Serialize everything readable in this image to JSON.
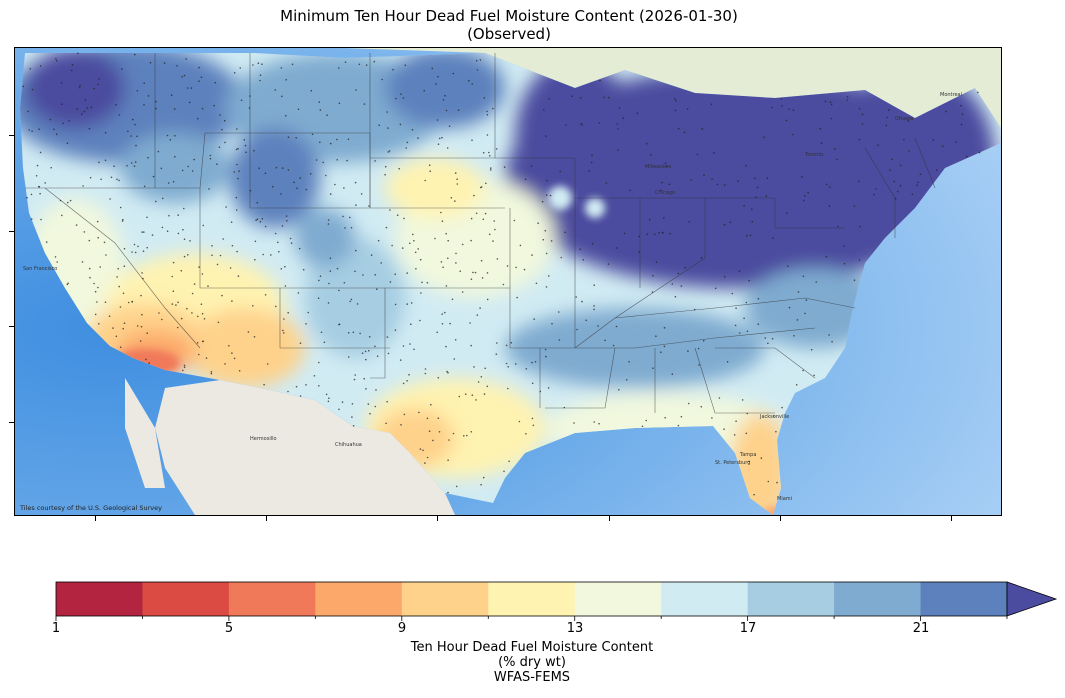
{
  "title": {
    "line1": "Minimum Ten Hour Dead Fuel Moisture Content (2026-01-30)",
    "line2": "(Observed)"
  },
  "map": {
    "attribution": "Tiles courtesy of the U.S. Geological Survey",
    "place_labels": [
      "San Francisco",
      "Chihuahua",
      "Hermosillo",
      "Milwaukee",
      "Chicago",
      "Ottawa",
      "Toronto",
      "Montreal",
      "Jacksonville",
      "Tampa",
      "Miami",
      "St. Petersburg"
    ]
  },
  "colorbar": {
    "ticks": [
      "1",
      "5",
      "9",
      "13",
      "17",
      "21"
    ],
    "label_line1": "Ten Hour Dead Fuel Moisture Content",
    "label_line2": "(% dry wt)",
    "label_line3": "WFAS-FEMS",
    "colors": [
      "#b32441",
      "#dc4b43",
      "#f0795a",
      "#fca86b",
      "#fed28b",
      "#fff3b1",
      "#f1f8dd",
      "#d1ebf3",
      "#a6cde2",
      "#7fabd0",
      "#5d81bd",
      "#4b4b9f"
    ]
  }
}
